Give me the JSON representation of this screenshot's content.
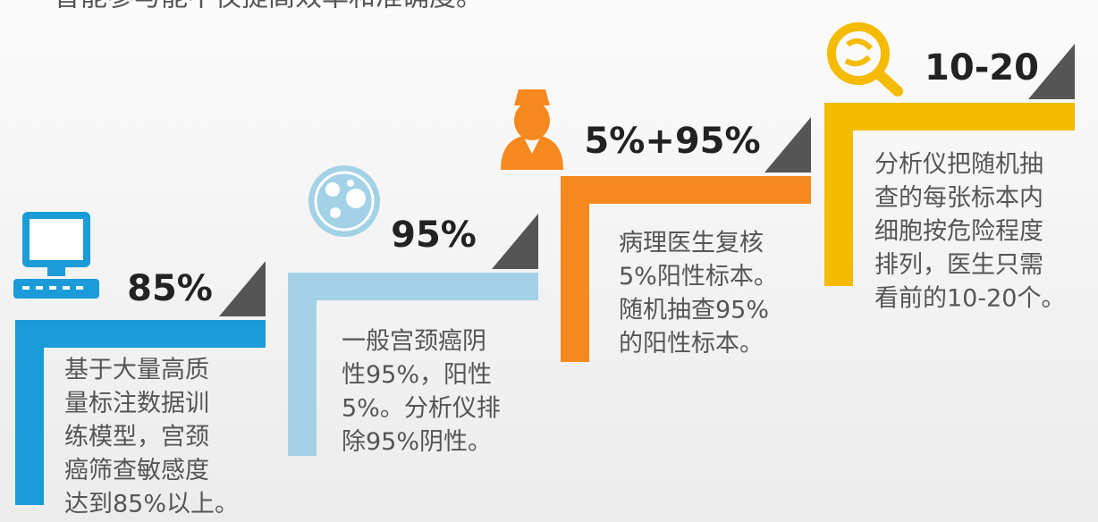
{
  "header": {
    "title": "智能参与能不仅提高效率和准确度。"
  },
  "steps": [
    {
      "label": "85%",
      "color": "#1b9bd7",
      "lines": [
        "基于大量高质",
        "量标注数据训",
        "练模型，宫颈",
        "癌筛查敏感度",
        "达到85%以上。"
      ]
    },
    {
      "label": "95%",
      "color": "#a3d2e7",
      "lines": [
        "一般宫颈癌阴",
        "性95%，阳性",
        "5%。分析仪排",
        "除95%阴性。"
      ]
    },
    {
      "label": "5%+95%",
      "color": "#f5891f",
      "lines": [
        "病理医生复核",
        "5%阳性标本。",
        "随机抽查95%",
        "的阳性标本。"
      ]
    },
    {
      "label": "10-20",
      "color": "#f4bb00",
      "lines": [
        "分析仪把随机抽",
        "查的每张标本内",
        "细胞按危险程度",
        "排列，医生只需",
        "看前的10-20个。"
      ]
    }
  ]
}
